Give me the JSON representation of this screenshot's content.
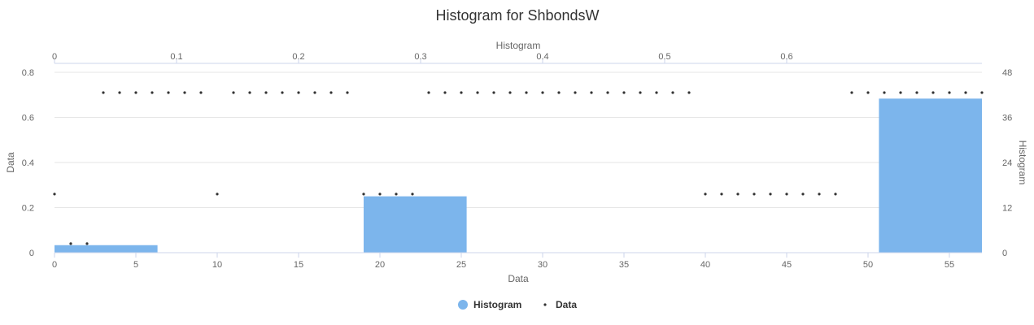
{
  "chart_data": {
    "type": "bar",
    "title": "Histogram for ShbondsW",
    "xlabel": "Data",
    "ylabel": "Data",
    "x2label": "Histogram",
    "y2label": "Histogram",
    "xlim": [
      0,
      57
    ],
    "ylim": [
      0,
      0.8
    ],
    "x2lim": [
      0,
      0.76
    ],
    "y2lim": [
      0,
      48
    ],
    "x_ticks": [
      "0",
      "5",
      "10",
      "15",
      "20",
      "25",
      "30",
      "35",
      "40",
      "45",
      "50",
      "55"
    ],
    "y_ticks": [
      "0",
      "0.2",
      "0.4",
      "0.6",
      "0.8"
    ],
    "x2_ticks": [
      "0",
      "0.1",
      "0.2",
      "0.3",
      "0.4",
      "0.5",
      "0.6"
    ],
    "y2_ticks": [
      "0",
      "12",
      "24",
      "36",
      "48"
    ],
    "legend_position": "bottom-center",
    "grid": true,
    "series": [
      {
        "name": "Histogram",
        "type": "column",
        "color": "#7cb5ec",
        "bins": [
          {
            "x_start": 0,
            "x_end": 6.33,
            "value": 2
          },
          {
            "x_start": 19,
            "x_end": 25.33,
            "value": 15
          },
          {
            "x_start": 50.67,
            "x_end": 57,
            "value": 41
          }
        ]
      },
      {
        "name": "Data",
        "type": "scatter",
        "color": "#333333",
        "points": [
          {
            "x": 0,
            "y": 0.26
          },
          {
            "x": 1,
            "y": 0.04
          },
          {
            "x": 2,
            "y": 0.04
          },
          {
            "x": 3,
            "y": 0.71
          },
          {
            "x": 4,
            "y": 0.71
          },
          {
            "x": 5,
            "y": 0.71
          },
          {
            "x": 6,
            "y": 0.71
          },
          {
            "x": 7,
            "y": 0.71
          },
          {
            "x": 8,
            "y": 0.71
          },
          {
            "x": 9,
            "y": 0.71
          },
          {
            "x": 10,
            "y": 0.26
          },
          {
            "x": 11,
            "y": 0.71
          },
          {
            "x": 12,
            "y": 0.71
          },
          {
            "x": 13,
            "y": 0.71
          },
          {
            "x": 14,
            "y": 0.71
          },
          {
            "x": 15,
            "y": 0.71
          },
          {
            "x": 16,
            "y": 0.71
          },
          {
            "x": 17,
            "y": 0.71
          },
          {
            "x": 18,
            "y": 0.71
          },
          {
            "x": 19,
            "y": 0.26
          },
          {
            "x": 20,
            "y": 0.26
          },
          {
            "x": 21,
            "y": 0.26
          },
          {
            "x": 22,
            "y": 0.26
          },
          {
            "x": 23,
            "y": 0.71
          },
          {
            "x": 24,
            "y": 0.71
          },
          {
            "x": 25,
            "y": 0.71
          },
          {
            "x": 26,
            "y": 0.71
          },
          {
            "x": 27,
            "y": 0.71
          },
          {
            "x": 28,
            "y": 0.71
          },
          {
            "x": 29,
            "y": 0.71
          },
          {
            "x": 30,
            "y": 0.71
          },
          {
            "x": 31,
            "y": 0.71
          },
          {
            "x": 32,
            "y": 0.71
          },
          {
            "x": 33,
            "y": 0.71
          },
          {
            "x": 34,
            "y": 0.71
          },
          {
            "x": 35,
            "y": 0.71
          },
          {
            "x": 36,
            "y": 0.71
          },
          {
            "x": 37,
            "y": 0.71
          },
          {
            "x": 38,
            "y": 0.71
          },
          {
            "x": 39,
            "y": 0.71
          },
          {
            "x": 40,
            "y": 0.26
          },
          {
            "x": 41,
            "y": 0.26
          },
          {
            "x": 42,
            "y": 0.26
          },
          {
            "x": 43,
            "y": 0.26
          },
          {
            "x": 44,
            "y": 0.26
          },
          {
            "x": 45,
            "y": 0.26
          },
          {
            "x": 46,
            "y": 0.26
          },
          {
            "x": 47,
            "y": 0.26
          },
          {
            "x": 48,
            "y": 0.26
          },
          {
            "x": 49,
            "y": 0.71
          },
          {
            "x": 50,
            "y": 0.71
          },
          {
            "x": 51,
            "y": 0.71
          },
          {
            "x": 52,
            "y": 0.71
          },
          {
            "x": 53,
            "y": 0.71
          },
          {
            "x": 54,
            "y": 0.71
          },
          {
            "x": 55,
            "y": 0.71
          },
          {
            "x": 56,
            "y": 0.71
          },
          {
            "x": 57,
            "y": 0.71
          }
        ]
      }
    ]
  }
}
